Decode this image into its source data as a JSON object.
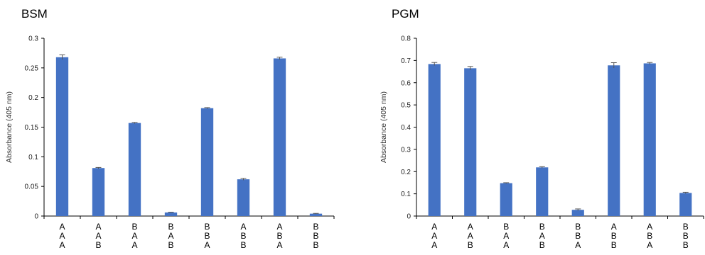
{
  "chart_data": [
    {
      "type": "bar",
      "title": "BSM",
      "ylabel": "Absorbance (405 nm)",
      "xlabel": "",
      "ylim": [
        0,
        0.3
      ],
      "yticks": [
        "0",
        "0.05",
        "0.1",
        "0.15",
        "0.2",
        "0.25",
        "0.3"
      ],
      "categories": [
        [
          "A",
          "A",
          "A"
        ],
        [
          "A",
          "A",
          "B"
        ],
        [
          "B",
          "A",
          "A"
        ],
        [
          "B",
          "A",
          "B"
        ],
        [
          "B",
          "B",
          "A"
        ],
        [
          "A",
          "B",
          "B"
        ],
        [
          "A",
          "B",
          "A"
        ],
        [
          "B",
          "B",
          "B"
        ]
      ],
      "values": [
        0.268,
        0.081,
        0.157,
        0.006,
        0.182,
        0.062,
        0.266,
        0.004
      ],
      "errors": [
        0.004,
        0.001,
        0.001,
        0.0005,
        0.001,
        0.0015,
        0.002,
        0.0005
      ],
      "bar_color": "#4472C4"
    },
    {
      "type": "bar",
      "title": "PGM",
      "ylabel": "Absorbance (405 nm)",
      "xlabel": "",
      "ylim": [
        0,
        0.8
      ],
      "yticks": [
        "0",
        "0.1",
        "0.2",
        "0.3",
        "0.4",
        "0.5",
        "0.6",
        "0.7",
        "0.8"
      ],
      "categories": [
        [
          "A",
          "A",
          "A"
        ],
        [
          "A",
          "A",
          "B"
        ],
        [
          "B",
          "A",
          "A"
        ],
        [
          "B",
          "A",
          "B"
        ],
        [
          "B",
          "B",
          "A"
        ],
        [
          "A",
          "B",
          "B"
        ],
        [
          "A",
          "B",
          "A"
        ],
        [
          "B",
          "B",
          "B"
        ]
      ],
      "values": [
        0.684,
        0.665,
        0.148,
        0.219,
        0.028,
        0.678,
        0.687,
        0.104
      ],
      "errors": [
        0.007,
        0.008,
        0.002,
        0.003,
        0.004,
        0.012,
        0.004,
        0.003
      ],
      "bar_color": "#4472C4"
    }
  ]
}
